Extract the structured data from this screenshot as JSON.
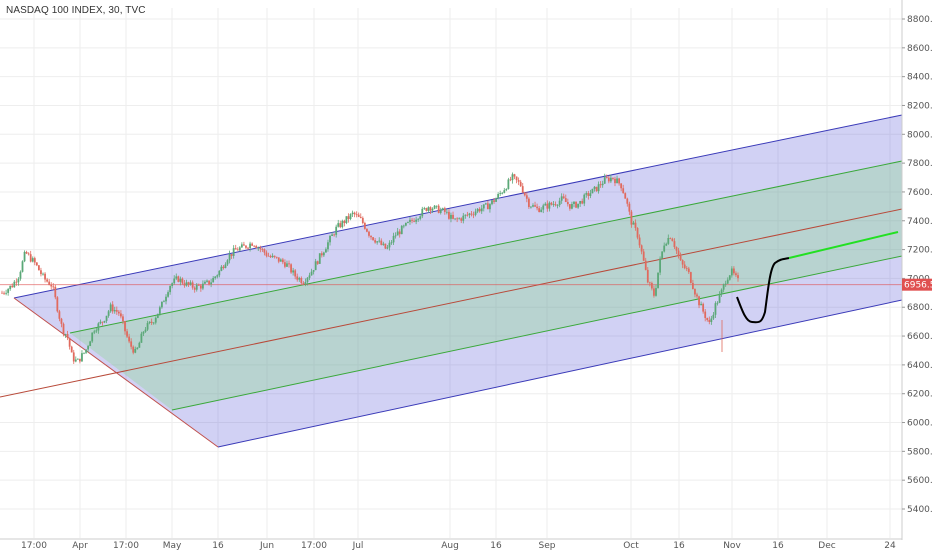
{
  "chart_title": "NASDAQ 100 INDEX, 30, TVC",
  "colors": {
    "outer_band": "#5b5bd6",
    "inner_band": "#7ed87e",
    "median_line": "#b84a3a",
    "price_line": "#e05050",
    "up_candle": "#5aa877",
    "down_candle": "#e06a5e",
    "projection_black": "#000000",
    "projection_green": "#22e022"
  },
  "chart_data": {
    "type": "candlestick",
    "symbol": "NASDAQ 100 INDEX",
    "interval": "30",
    "source": "TVC",
    "current_price": "6956.5",
    "y_ticks": [
      "8800.0",
      "8600.0",
      "8400.0",
      "8200.0",
      "8000.0",
      "7800.0",
      "7600.0",
      "7400.0",
      "7200.0",
      "7000.0",
      "6800.0",
      "6600.0",
      "6400.0",
      "6200.0",
      "6000.0",
      "5800.0",
      "5600.0",
      "5400.0"
    ],
    "x_ticks": [
      "17:00",
      "Apr",
      "17:00",
      "May",
      "16",
      "Jun",
      "17:00",
      "Jul",
      "Aug",
      "16",
      "Sep",
      "Oct",
      "16",
      "Nov",
      "16",
      "Dec",
      "24"
    ],
    "ylim": [
      5300,
      8900
    ],
    "price_path": [
      [
        0,
        6900
      ],
      [
        0.6,
        6950
      ],
      [
        1.0,
        7020
      ],
      [
        1.4,
        7180
      ],
      [
        2.0,
        7100
      ],
      [
        2.5,
        7000
      ],
      [
        3.0,
        6950
      ],
      [
        3.3,
        6800
      ],
      [
        3.6,
        6650
      ],
      [
        3.9,
        6600
      ],
      [
        4.2,
        6450
      ],
      [
        4.5,
        6420
      ],
      [
        5.0,
        6500
      ],
      [
        5.5,
        6650
      ],
      [
        6.0,
        6700
      ],
      [
        6.5,
        6800
      ],
      [
        7.0,
        6760
      ],
      [
        7.6,
        6550
      ],
      [
        8.0,
        6480
      ],
      [
        8.5,
        6650
      ],
      [
        9.0,
        6700
      ],
      [
        9.5,
        6800
      ],
      [
        10.0,
        6950
      ],
      [
        10.5,
        7000
      ],
      [
        11.0,
        6960
      ],
      [
        11.5,
        6940
      ],
      [
        12.0,
        6950
      ],
      [
        12.5,
        6980
      ],
      [
        13.0,
        7050
      ],
      [
        13.5,
        7150
      ],
      [
        14.0,
        7200
      ],
      [
        14.5,
        7220
      ],
      [
        15.0,
        7250
      ],
      [
        15.5,
        7200
      ],
      [
        16.0,
        7150
      ],
      [
        16.5,
        7130
      ],
      [
        17.0,
        7100
      ],
      [
        17.5,
        7020
      ],
      [
        18.0,
        6980
      ],
      [
        18.5,
        7050
      ],
      [
        19.0,
        7150
      ],
      [
        19.5,
        7250
      ],
      [
        20.0,
        7350
      ],
      [
        20.5,
        7400
      ],
      [
        21.0,
        7450
      ],
      [
        21.5,
        7400
      ],
      [
        22.0,
        7300
      ],
      [
        22.5,
        7250
      ],
      [
        23.0,
        7200
      ],
      [
        23.5,
        7300
      ],
      [
        24.0,
        7350
      ],
      [
        24.5,
        7400
      ],
      [
        25.0,
        7450
      ],
      [
        25.5,
        7500
      ],
      [
        26.0,
        7480
      ],
      [
        26.5,
        7460
      ],
      [
        27.0,
        7400
      ],
      [
        27.5,
        7420
      ],
      [
        28.0,
        7450
      ],
      [
        28.5,
        7480
      ],
      [
        29.0,
        7500
      ],
      [
        29.5,
        7550
      ],
      [
        30.0,
        7620
      ],
      [
        30.5,
        7700
      ],
      [
        31.0,
        7650
      ],
      [
        31.5,
        7520
      ],
      [
        32.0,
        7480
      ],
      [
        32.5,
        7500
      ],
      [
        33.0,
        7520
      ],
      [
        33.5,
        7550
      ],
      [
        34.0,
        7500
      ],
      [
        34.5,
        7520
      ],
      [
        35.0,
        7580
      ],
      [
        35.5,
        7620
      ],
      [
        36.0,
        7680
      ],
      [
        36.5,
        7700
      ],
      [
        37.0,
        7650
      ],
      [
        37.3,
        7550
      ],
      [
        37.6,
        7400
      ],
      [
        38.0,
        7300
      ],
      [
        38.3,
        7150
      ],
      [
        38.6,
        6980
      ],
      [
        39.0,
        6880
      ],
      [
        39.3,
        7100
      ],
      [
        39.6,
        7250
      ],
      [
        40.0,
        7300
      ],
      [
        40.3,
        7200
      ],
      [
        40.6,
        7100
      ],
      [
        41.0,
        7050
      ],
      [
        41.3,
        6950
      ],
      [
        41.6,
        6850
      ],
      [
        42.0,
        6750
      ],
      [
        42.3,
        6680
      ],
      [
        42.6,
        6800
      ],
      [
        43.0,
        6900
      ],
      [
        43.3,
        7000
      ],
      [
        43.6,
        7050
      ],
      [
        44.0,
        6980
      ]
    ],
    "series": [
      {
        "values": []
      }
    ]
  }
}
